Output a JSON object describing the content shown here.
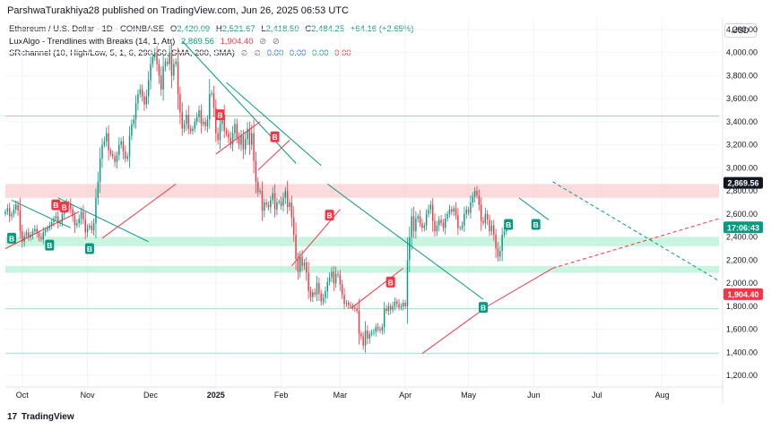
{
  "byline": "ParshwaTurakhiya28 published on TradingView.com, Jun 26, 2025 06:53 UTC",
  "legend": {
    "symbol": "Ethereum / U.S. Dollar · 1D · COINBASE",
    "o_label": "O",
    "o_value": "2,420.09",
    "h_label": "H",
    "h_value": "2,521.67",
    "l_label": "L",
    "l_value": "2,418.50",
    "c_label": "C",
    "c_value": "2,484.25",
    "change": "+64.16 (+2.65%)",
    "ind1_name": "LuxAlgo - Trendlines with Breaks (14, 1, Atr)",
    "ind1_v1": "2,869.56",
    "ind1_v2": "1,904.40",
    "ind2_name": "SRchannel (10, High/Low, 5, 1, 6, 290, 50, SMA, 200, SMA)",
    "ind2_vals": [
      "0.00",
      "0.00",
      "0.00",
      "0.00"
    ],
    "control_icon": "⊘"
  },
  "currency": "USD",
  "footer": {
    "brand": "TradingView",
    "logo": "17"
  },
  "colors": {
    "up": "#089981",
    "down": "#f23645",
    "resistance_zone": "#fbcfd2",
    "support_zone": "#b7f1d6",
    "trend_down": "#089981",
    "trend_up": "#f23645",
    "label_bg": "#131722",
    "break_buy": "#089981",
    "break_sell": "#f23645"
  },
  "chart_data": {
    "type": "candlestick",
    "instrument": "Ethereum / U.S. Dollar",
    "timeframe": "1D",
    "ylim": [
      1100,
      4300
    ],
    "y_ticks": [
      1200,
      1400,
      1600,
      1800,
      2000,
      2200,
      2400,
      2600,
      2800,
      3000,
      3200,
      3400,
      3600,
      3800,
      4000,
      4200
    ],
    "y_tick_labels": [
      "1,200.00",
      "1,400.00",
      "1,600.00",
      "1,800.00",
      "2,000.00",
      "2,200.00",
      "2,400.00",
      "2,600.00",
      "2,800.00",
      "3,000.00",
      "3,200.00",
      "3,400.00",
      "3,600.00",
      "3,800.00",
      "4,000.00",
      "4,200.00"
    ],
    "x_start": "2024-09-23",
    "x_end": "2025-08-28",
    "x_ticks": [
      {
        "date": "2024-10-01",
        "label": "Oct"
      },
      {
        "date": "2024-11-01",
        "label": "Nov"
      },
      {
        "date": "2024-12-01",
        "label": "Dec"
      },
      {
        "date": "2025-01-01",
        "label": "2025"
      },
      {
        "date": "2025-02-01",
        "label": "Feb"
      },
      {
        "date": "2025-03-01",
        "label": "Mar"
      },
      {
        "date": "2025-04-01",
        "label": "Apr"
      },
      {
        "date": "2025-05-01",
        "label": "May"
      },
      {
        "date": "2025-06-01",
        "label": "Jun"
      },
      {
        "date": "2025-07-01",
        "label": "Jul"
      },
      {
        "date": "2025-08-01",
        "label": "Aug"
      }
    ],
    "first_candle_date": "2024-09-23",
    "closes": [
      2620,
      2650,
      2580,
      2600,
      2640,
      2680,
      2630,
      2450,
      2360,
      2410,
      2440,
      2400,
      2420,
      2450,
      2470,
      2430,
      2400,
      2380,
      2440,
      2460,
      2480,
      2500,
      2530,
      2560,
      2580,
      2520,
      2530,
      2600,
      2660,
      2700,
      2690,
      2640,
      2580,
      2500,
      2520,
      2560,
      2620,
      2550,
      2440,
      2480,
      2500,
      2460,
      2520,
      2740,
      2880,
      3080,
      3200,
      3230,
      3300,
      3150,
      3120,
      3100,
      3050,
      3110,
      3200,
      3230,
      3140,
      3080,
      3100,
      3280,
      3380,
      3420,
      3560,
      3640,
      3680,
      3620,
      3550,
      3620,
      3760,
      3900,
      3960,
      4000,
      3900,
      3800,
      3680,
      3880,
      3920,
      3900,
      4000,
      3800,
      3900,
      3920,
      3640,
      3480,
      3340,
      3380,
      3460,
      3340,
      3320,
      3340,
      3400,
      3440,
      3500,
      3380,
      3400,
      3360,
      3420,
      3640,
      3650,
      3520,
      3300,
      3240,
      3380,
      3460,
      3320,
      3300,
      3260,
      3200,
      3300,
      3380,
      3260,
      3200,
      3280,
      3160,
      3250,
      3340,
      3200,
      3300,
      3060,
      2880,
      2790,
      2800,
      2630,
      2700,
      2680,
      2660,
      2720,
      2780,
      2640,
      2700,
      2710,
      2670,
      2740,
      2800,
      2660,
      2700,
      2570,
      2420,
      2210,
      2100,
      2230,
      2150,
      2180,
      2090,
      1930,
      1880,
      1920,
      1900,
      2000,
      1910,
      1840,
      1870,
      1930,
      2010,
      2050,
      2100,
      2000,
      2080,
      2070,
      1990,
      1900,
      1820,
      1830,
      1810,
      1800,
      1790,
      1780,
      1760,
      1560,
      1540,
      1460,
      1590,
      1520,
      1560,
      1570,
      1580,
      1620,
      1600,
      1590,
      1620,
      1780,
      1760,
      1800,
      1770,
      1800,
      1840,
      1820,
      1790,
      1800,
      1830,
      1800,
      2200,
      2400,
      2580,
      2450,
      2560,
      2580,
      2520,
      2480,
      2500,
      2600,
      2640,
      2680,
      2540,
      2450,
      2500,
      2550,
      2520,
      2480,
      2560,
      2600,
      2640,
      2620,
      2650,
      2590,
      2480,
      2480,
      2500,
      2600,
      2640,
      2610,
      2700,
      2750,
      2800,
      2760,
      2680,
      2540,
      2520,
      2600,
      2550,
      2450,
      2500,
      2420,
      2300,
      2230,
      2280,
      2420,
      2450,
      2484
    ],
    "resistance_zone": [
      2740,
      2860
    ],
    "support_zones": [
      [
        2320,
        2400
      ],
      [
        2090,
        2150
      ]
    ],
    "horizontal_levels": [
      3450,
      1780,
      1390
    ],
    "trendlines_down": [
      {
        "from": [
          "2024-09-26",
          2720
        ],
        "to": [
          "2024-10-24",
          2480
        ]
      },
      {
        "from": [
          "2024-10-18",
          2740
        ],
        "to": [
          "2024-11-30",
          2360
        ]
      },
      {
        "from": [
          "2024-12-16",
          4100
        ],
        "to": [
          "2025-02-08",
          3040
        ]
      },
      {
        "from": [
          "2025-01-06",
          3740
        ],
        "to": [
          "2025-02-20",
          3020
        ]
      },
      {
        "from": [
          "2025-02-23",
          2860
        ],
        "to": [
          "2025-05-08",
          1860
        ]
      },
      {
        "from": [
          "2025-05-25",
          2740
        ],
        "to": [
          "2025-06-08",
          2550
        ]
      }
    ],
    "trendlines_up": [
      {
        "from": [
          "2024-09-23",
          2300
        ],
        "to": [
          "2024-10-28",
          2620
        ]
      },
      {
        "from": [
          "2024-11-08",
          2390
        ],
        "to": [
          "2024-12-13",
          2860
        ]
      },
      {
        "from": [
          "2025-01-01",
          3120
        ],
        "to": [
          "2025-01-22",
          3400
        ]
      },
      {
        "from": [
          "2025-01-21",
          2980
        ],
        "to": [
          "2025-02-05",
          3240
        ]
      },
      {
        "from": [
          "2025-02-06",
          2150
        ],
        "to": [
          "2025-03-01",
          2640
        ]
      },
      {
        "from": [
          "2025-03-06",
          1780
        ],
        "to": [
          "2025-03-31",
          2130
        ]
      },
      {
        "from": [
          "2025-04-09",
          1390
        ],
        "to": [
          "2025-05-10",
          1800
        ]
      }
    ],
    "projection_up_solid": {
      "from": [
        "2025-05-10",
        1800
      ],
      "to": [
        "2025-06-10",
        2130
      ]
    },
    "projection_up_dashed": {
      "from": [
        "2025-06-10",
        2130
      ],
      "to": [
        "2025-08-28",
        2560
      ]
    },
    "projection_down_dashed": {
      "from": [
        "2025-06-10",
        2880
      ],
      "to": [
        "2025-08-28",
        2020
      ]
    },
    "break_labels": [
      {
        "date": "2024-09-26",
        "price": 2390,
        "text": "B",
        "kind": "buy"
      },
      {
        "date": "2024-10-14",
        "price": 2330,
        "text": "B",
        "kind": "buy"
      },
      {
        "date": "2024-10-17",
        "price": 2680,
        "text": "B",
        "kind": "sell"
      },
      {
        "date": "2024-10-21",
        "price": 2660,
        "text": "B",
        "kind": "sell"
      },
      {
        "date": "2024-11-02",
        "price": 2300,
        "text": "B",
        "kind": "buy"
      },
      {
        "date": "2025-01-03",
        "price": 3460,
        "text": "B",
        "kind": "sell"
      },
      {
        "date": "2025-01-29",
        "price": 3270,
        "text": "B",
        "kind": "sell"
      },
      {
        "date": "2025-02-24",
        "price": 2590,
        "text": "B",
        "kind": "sell"
      },
      {
        "date": "2025-03-25",
        "price": 2010,
        "text": "B",
        "kind": "sell"
      },
      {
        "date": "2025-05-08",
        "price": 1790,
        "text": "B",
        "kind": "buy"
      },
      {
        "date": "2025-05-20",
        "price": 2510,
        "text": "B",
        "kind": "buy"
      },
      {
        "date": "2025-06-02",
        "price": 2510,
        "text": "B",
        "kind": "buy"
      }
    ],
    "price_labels": [
      {
        "price": 2869.56,
        "text": "2,869.56",
        "bg": "#131722",
        "fg": "#ffffff"
      },
      {
        "price": 2484.25,
        "text": "17:06:43",
        "bg": "#089981",
        "fg": "#ffffff"
      },
      {
        "price": 1904.4,
        "text": "1,904.40",
        "bg": "#f23645",
        "fg": "#ffffff"
      }
    ]
  }
}
